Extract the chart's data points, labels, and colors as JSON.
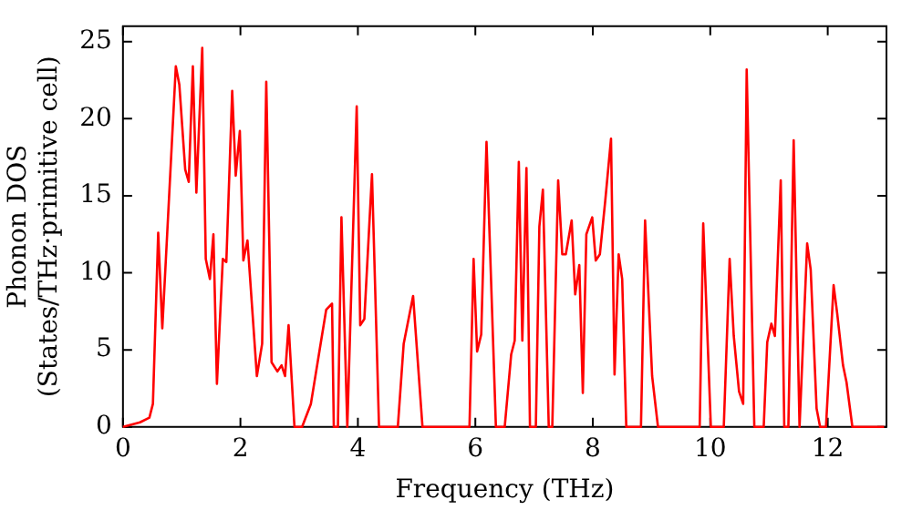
{
  "chart_data": {
    "type": "line",
    "xlabel": "Frequency (THz)",
    "ylabel": "Phonon DOS\n(States/THz·primitive cell)",
    "xlim": [
      0,
      13
    ],
    "xticks": [
      0,
      2,
      4,
      6,
      8,
      10,
      12
    ],
    "ylim": [
      0,
      26
    ],
    "yticks": [
      0,
      5,
      10,
      15,
      20,
      25
    ],
    "grid": false,
    "legend": false,
    "marker": "none",
    "line_style": "solid",
    "series": [
      {
        "color": "#ff0000",
        "x": [
          0,
          0.29,
          0.45,
          0.51,
          0.6,
          0.67,
          0.9,
          0.96,
          1.06,
          1.12,
          1.19,
          1.25,
          1.35,
          1.41,
          1.48,
          1.54,
          1.6,
          1.7,
          1.76,
          1.86,
          1.92,
          1.99,
          2.05,
          2.12,
          2.28,
          2.37,
          2.44,
          2.53,
          2.63,
          2.7,
          2.76,
          2.82,
          2.92,
          3.05,
          3.2,
          3.37,
          3.46,
          3.56,
          3.59,
          3.66,
          3.72,
          3.82,
          3.98,
          4.04,
          4.11,
          4.24,
          4.36,
          4.68,
          4.78,
          4.94,
          5.1,
          5.9,
          5.97,
          6.03,
          6.1,
          6.19,
          6.35,
          6.5,
          6.61,
          6.67,
          6.74,
          6.8,
          6.87,
          6.93,
          7.03,
          7.09,
          7.15,
          7.25,
          7.31,
          7.41,
          7.48,
          7.54,
          7.64,
          7.7,
          7.77,
          7.83,
          7.89,
          7.99,
          8.05,
          8.12,
          8.21,
          8.31,
          8.37,
          8.44,
          8.5,
          8.57,
          8.82,
          8.89,
          9.01,
          9.11,
          9.82,
          9.88,
          10.01,
          10.23,
          10.33,
          10.4,
          10.49,
          10.56,
          10.62,
          10.75,
          10.91,
          10.97,
          11.04,
          11.1,
          11.2,
          11.26,
          11.33,
          11.42,
          11.52,
          11.65,
          11.71,
          11.81,
          11.87,
          11.97,
          12.1,
          12.16,
          12.26,
          12.32,
          12.42,
          12.96
        ],
        "values": [
          0,
          0.3,
          0.6,
          1.5,
          12.6,
          6.4,
          23.4,
          22.2,
          16.7,
          15.9,
          23.4,
          15.2,
          24.6,
          10.9,
          9.6,
          12.5,
          2.8,
          10.9,
          10.7,
          21.8,
          16.3,
          19.2,
          10.8,
          12.1,
          3.3,
          5.4,
          22.4,
          4.2,
          3.6,
          4.0,
          3.3,
          6.6,
          0,
          0,
          1.5,
          5.5,
          7.6,
          8.0,
          0,
          0,
          13.6,
          0,
          20.8,
          6.6,
          7.0,
          16.4,
          0,
          0,
          5.4,
          8.5,
          0,
          0,
          10.9,
          4.9,
          6.0,
          18.5,
          0,
          0,
          4.7,
          5.6,
          17.2,
          5.6,
          16.8,
          0,
          0,
          13.0,
          15.4,
          0,
          0,
          16.0,
          11.2,
          11.2,
          13.4,
          8.6,
          10.5,
          2.2,
          12.5,
          13.6,
          10.8,
          11.2,
          14.6,
          18.7,
          3.4,
          11.2,
          9.6,
          0,
          0,
          13.4,
          3.3,
          0,
          0,
          13.2,
          0,
          0,
          10.9,
          5.9,
          2.3,
          1.5,
          23.2,
          0,
          0,
          5.5,
          6.7,
          5.9,
          16.0,
          0,
          0,
          18.6,
          0,
          11.9,
          10.2,
          1.2,
          0,
          0,
          9.2,
          7.4,
          4.0,
          2.9,
          0,
          0
        ]
      }
    ]
  }
}
